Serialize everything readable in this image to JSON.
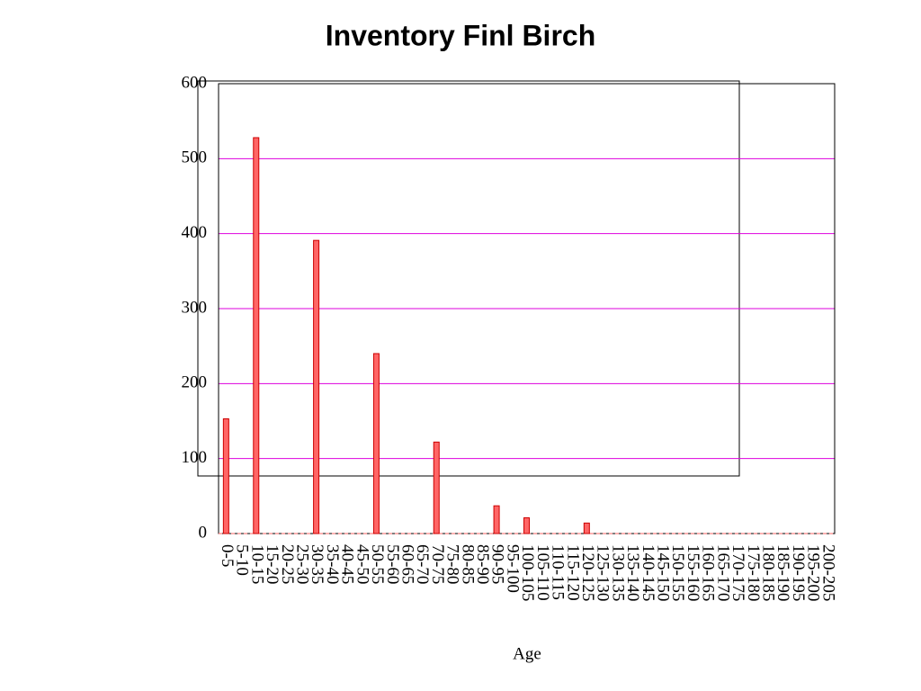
{
  "chart_data": {
    "type": "bar",
    "title": "Inventory Finl Birch",
    "x_label": "Age",
    "categories": [
      "0-5",
      "5-10",
      "10-15",
      "15-20",
      "20-25",
      "25-30",
      "30-35",
      "35-40",
      "40-45",
      "45-50",
      "50-55",
      "55-60",
      "60-65",
      "65-70",
      "70-75",
      "75-80",
      "80-85",
      "85-90",
      "90-95",
      "95-100",
      "100-105",
      "105-110",
      "110-115",
      "115-120",
      "120-125",
      "125-130",
      "130-135",
      "135-140",
      "140-145",
      "145-150",
      "150-155",
      "155-160",
      "160-165",
      "165-170",
      "170-175",
      "175-180",
      "180-185",
      "185-190",
      "190-195",
      "195-200",
      "200-205"
    ],
    "values": [
      153,
      0,
      528,
      0,
      0,
      0,
      391,
      0,
      0,
      0,
      240,
      0,
      0,
      0,
      122,
      0,
      0,
      0,
      37,
      0,
      21,
      0,
      0,
      0,
      14,
      0,
      0,
      0,
      0,
      0,
      0,
      0,
      0,
      0,
      0,
      0,
      0,
      0,
      0,
      0,
      0
    ],
    "color": "#ff6666",
    "ylim": [
      0,
      600
    ],
    "yticks": [
      0,
      100,
      200,
      300,
      400,
      500,
      600
    ],
    "grid": true,
    "grid_color": "#dd00dd"
  }
}
